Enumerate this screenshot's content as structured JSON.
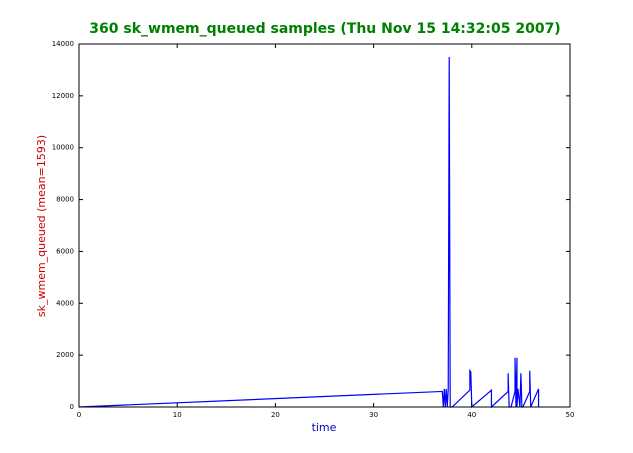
{
  "chart_data": {
    "type": "line",
    "title": "360 sk_wmem_queued samples (Thu Nov 15 14:32:05 2007)",
    "x_label": "time",
    "y_label": "sk_wmem_queued (mean=1593)",
    "color": "#0000ff",
    "x": [
      0,
      37.0,
      37.1,
      37.2,
      37.3,
      37.4,
      37.5,
      37.6,
      37.7,
      37.8,
      38.0,
      39.8,
      39.8,
      39.9,
      40.0,
      42.0,
      42.0,
      43.7,
      43.7,
      43.8,
      44.0,
      44.4,
      44.4,
      44.5,
      44.6,
      44.6,
      44.7,
      44.9,
      45.0,
      45.1,
      45.2,
      45.9,
      45.9,
      46.0,
      46.8,
      46.8
    ],
    "values": [
      0,
      600,
      0,
      700,
      0,
      700,
      0,
      700,
      13500,
      0,
      0,
      650,
      1400,
      1350,
      0,
      650,
      0,
      600,
      1300,
      0,
      0,
      600,
      1900,
      0,
      1900,
      0,
      700,
      0,
      1300,
      0,
      0,
      600,
      1400,
      0,
      700,
      0
    ],
    "xlim": [
      0,
      50
    ],
    "xticks": [
      0,
      10,
      20,
      30,
      40,
      50
    ],
    "ylim": [
      0,
      14000
    ],
    "yticks": [
      0,
      2000,
      4000,
      6000,
      8000,
      10000,
      12000,
      14000
    ]
  }
}
